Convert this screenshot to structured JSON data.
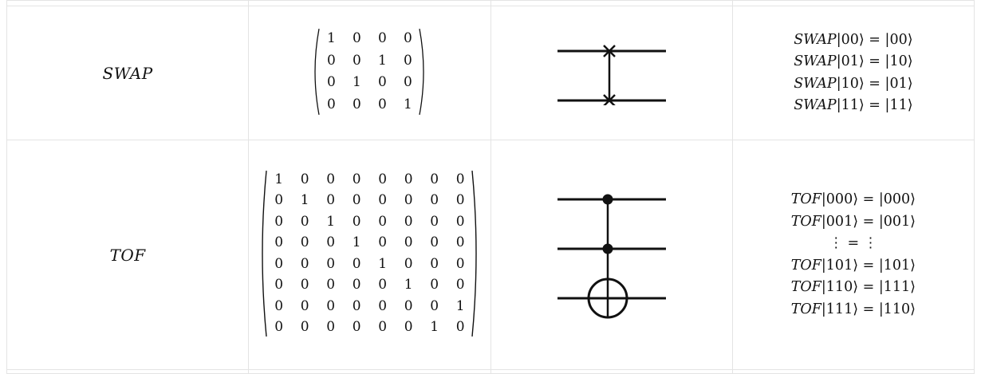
{
  "gates": [
    {
      "name": "SWAP",
      "matrix": [
        [
          "1",
          "0",
          "0",
          "0"
        ],
        [
          "0",
          "0",
          "1",
          "0"
        ],
        [
          "0",
          "1",
          "0",
          "0"
        ],
        [
          "0",
          "0",
          "0",
          "1"
        ]
      ],
      "circuit": "swap-gate-diagram",
      "equations": [
        {
          "op": "SWAP",
          "in": "|00⟩",
          "out": "|00⟩"
        },
        {
          "op": "SWAP",
          "in": "|01⟩",
          "out": "|10⟩"
        },
        {
          "op": "SWAP",
          "in": "|10⟩",
          "out": "|01⟩"
        },
        {
          "op": "SWAP",
          "in": "|11⟩",
          "out": "|11⟩"
        }
      ]
    },
    {
      "name": "TOF",
      "matrix": [
        [
          "1",
          "0",
          "0",
          "0",
          "0",
          "0",
          "0",
          "0"
        ],
        [
          "0",
          "1",
          "0",
          "0",
          "0",
          "0",
          "0",
          "0"
        ],
        [
          "0",
          "0",
          "1",
          "0",
          "0",
          "0",
          "0",
          "0"
        ],
        [
          "0",
          "0",
          "0",
          "1",
          "0",
          "0",
          "0",
          "0"
        ],
        [
          "0",
          "0",
          "0",
          "0",
          "1",
          "0",
          "0",
          "0"
        ],
        [
          "0",
          "0",
          "0",
          "0",
          "0",
          "1",
          "0",
          "0"
        ],
        [
          "0",
          "0",
          "0",
          "0",
          "0",
          "0",
          "0",
          "1"
        ],
        [
          "0",
          "0",
          "0",
          "0",
          "0",
          "0",
          "1",
          "0"
        ]
      ],
      "circuit": "toffoli-gate-diagram",
      "equations": [
        {
          "op": "TOF",
          "in": "|000⟩",
          "out": "|000⟩"
        },
        {
          "op": "TOF",
          "in": "|001⟩",
          "out": "|001⟩"
        },
        {
          "op": "",
          "in": "⋮",
          "out": "⋮"
        },
        {
          "op": "TOF",
          "in": "|101⟩",
          "out": "|101⟩"
        },
        {
          "op": "TOF",
          "in": "|110⟩",
          "out": "|111⟩"
        },
        {
          "op": "TOF",
          "in": "|111⟩",
          "out": "|110⟩"
        }
      ],
      "vdots": "⋮"
    }
  ],
  "equals": "="
}
